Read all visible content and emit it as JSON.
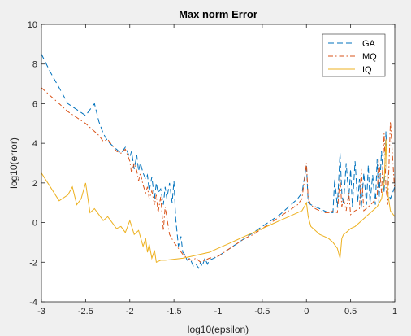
{
  "chart_data": {
    "type": "line",
    "title": "Max norm Error",
    "xlabel": "log10(epsilon)",
    "ylabel": "log10(error)",
    "xlim": [
      -3,
      1
    ],
    "ylim": [
      -4,
      10
    ],
    "xticks": [
      -3,
      -2.5,
      -2,
      -1.5,
      -1,
      -0.5,
      0,
      0.5,
      1
    ],
    "xtick_labels": [
      "-3",
      "-2.5",
      "-2",
      "-1.5",
      "-1",
      "-0.5",
      "0",
      "0.5",
      "1"
    ],
    "yticks": [
      -4,
      -2,
      0,
      2,
      4,
      6,
      8,
      10
    ],
    "ytick_labels": [
      "-4",
      "-2",
      "0",
      "2",
      "4",
      "6",
      "8",
      "10"
    ],
    "grid": false,
    "legend_position": "top-right",
    "series": [
      {
        "name": "GA",
        "color": "#0072BD",
        "dash": "dashed",
        "x": [
          -3,
          -2.9,
          -2.8,
          -2.7,
          -2.6,
          -2.5,
          -2.45,
          -2.4,
          -2.35,
          -2.3,
          -2.25,
          -2.2,
          -2.15,
          -2.1,
          -2.05,
          -2.0,
          -1.98,
          -1.95,
          -1.92,
          -1.9,
          -1.88,
          -1.85,
          -1.82,
          -1.8,
          -1.78,
          -1.75,
          -1.72,
          -1.7,
          -1.68,
          -1.65,
          -1.62,
          -1.6,
          -1.58,
          -1.55,
          -1.52,
          -1.5,
          -1.48,
          -1.45,
          -1.42,
          -1.4,
          -1.38,
          -1.35,
          -1.32,
          -1.3,
          -1.28,
          -1.25,
          -1.22,
          -1.2,
          -1.18,
          -1.15,
          -1.12,
          -1.1,
          -1.05,
          -1.0,
          -0.9,
          -0.8,
          -0.7,
          -0.6,
          -0.5,
          -0.4,
          -0.3,
          -0.2,
          -0.1,
          -0.05,
          0.0,
          0.02,
          0.05,
          0.1,
          0.15,
          0.2,
          0.25,
          0.3,
          0.32,
          0.35,
          0.38,
          0.4,
          0.42,
          0.45,
          0.48,
          0.5,
          0.52,
          0.55,
          0.58,
          0.6,
          0.62,
          0.65,
          0.68,
          0.7,
          0.72,
          0.75,
          0.78,
          0.8,
          0.82,
          0.85,
          0.88,
          0.9,
          0.92,
          0.95,
          1.0
        ],
        "y": [
          8.5,
          7.6,
          6.8,
          6.0,
          5.7,
          5.4,
          5.7,
          6.0,
          5.1,
          4.5,
          4.1,
          3.9,
          3.7,
          3.5,
          3.8,
          3.3,
          3.6,
          2.7,
          3.4,
          2.6,
          3.0,
          2.5,
          2.2,
          2.4,
          1.6,
          2.3,
          1.2,
          2.0,
          1.5,
          1.7,
          0.9,
          1.8,
          1.2,
          2.0,
          1.0,
          2.1,
          0.2,
          -1.2,
          -0.7,
          -1.5,
          -1.6,
          -1.9,
          -1.8,
          -2.0,
          -2.2,
          -2.1,
          -2.3,
          -2.0,
          -2.2,
          -1.8,
          -2.1,
          -1.9,
          -1.8,
          -1.7,
          -1.4,
          -1.1,
          -0.8,
          -0.5,
          -0.2,
          0.1,
          0.4,
          0.8,
          1.2,
          1.5,
          2.9,
          1.0,
          0.9,
          0.8,
          0.7,
          0.6,
          0.5,
          0.5,
          2.2,
          0.8,
          3.5,
          1.5,
          0.9,
          3.0,
          1.2,
          2.7,
          0.8,
          3.1,
          1.0,
          2.2,
          0.7,
          2.5,
          0.9,
          2.9,
          1.0,
          2.4,
          0.9,
          3.2,
          1.0,
          3.6,
          1.5,
          4.6,
          1.5,
          1.2,
          1.8
        ]
      },
      {
        "name": "MQ",
        "color": "#D95319",
        "dash": "dashdot",
        "x": [
          -3,
          -2.9,
          -2.8,
          -2.7,
          -2.6,
          -2.5,
          -2.45,
          -2.4,
          -2.35,
          -2.3,
          -2.25,
          -2.2,
          -2.15,
          -2.1,
          -2.05,
          -2.0,
          -1.98,
          -1.95,
          -1.92,
          -1.9,
          -1.88,
          -1.85,
          -1.82,
          -1.8,
          -1.78,
          -1.75,
          -1.72,
          -1.7,
          -1.68,
          -1.65,
          -1.62,
          -1.6,
          -1.55,
          -1.5,
          -1.45,
          -1.4,
          -1.35,
          -1.3,
          -1.25,
          -1.2,
          -1.15,
          -1.1,
          -1.0,
          -0.9,
          -0.8,
          -0.7,
          -0.6,
          -0.5,
          -0.4,
          -0.3,
          -0.2,
          -0.1,
          -0.05,
          0.0,
          0.02,
          0.05,
          0.1,
          0.15,
          0.2,
          0.25,
          0.3,
          0.35,
          0.38,
          0.4,
          0.42,
          0.45,
          0.48,
          0.5,
          0.55,
          0.6,
          0.62,
          0.65,
          0.7,
          0.75,
          0.8,
          0.82,
          0.85,
          0.88,
          0.9,
          0.92,
          0.95,
          1.0
        ],
        "y": [
          6.8,
          6.4,
          6.0,
          5.6,
          5.3,
          5.0,
          4.8,
          4.6,
          4.4,
          4.1,
          4.2,
          3.9,
          3.6,
          3.5,
          3.7,
          3.1,
          2.5,
          3.0,
          2.6,
          2.1,
          2.5,
          1.9,
          1.5,
          1.8,
          1.2,
          1.6,
          0.9,
          1.4,
          0.5,
          1.3,
          -0.4,
          0.8,
          -0.6,
          -1.0,
          -1.3,
          -1.6,
          -1.8,
          -1.9,
          -1.8,
          -2.0,
          -1.9,
          -1.8,
          -1.7,
          -1.4,
          -1.1,
          -0.8,
          -0.6,
          -0.3,
          0.0,
          0.3,
          0.6,
          0.9,
          1.2,
          3.0,
          1.2,
          0.9,
          0.7,
          0.6,
          0.5,
          0.5,
          0.6,
          0.5,
          2.3,
          0.8,
          1.2,
          0.6,
          1.5,
          0.4,
          0.6,
          0.7,
          2.7,
          0.6,
          0.8,
          1.0,
          1.3,
          3.2,
          1.5,
          4.5,
          1.8,
          0.9,
          5.1,
          1.5
        ]
      },
      {
        "name": "IQ",
        "color": "#EDB120",
        "dash": "solid",
        "x": [
          -3,
          -2.9,
          -2.8,
          -2.7,
          -2.65,
          -2.6,
          -2.55,
          -2.5,
          -2.45,
          -2.4,
          -2.35,
          -2.3,
          -2.25,
          -2.2,
          -2.15,
          -2.1,
          -2.05,
          -2.0,
          -1.95,
          -1.9,
          -1.85,
          -1.82,
          -1.8,
          -1.78,
          -1.75,
          -1.72,
          -1.7,
          -1.65,
          -1.6,
          -1.5,
          -1.4,
          -1.3,
          -1.2,
          -1.1,
          -1.0,
          -0.9,
          -0.8,
          -0.7,
          -0.6,
          -0.5,
          -0.4,
          -0.3,
          -0.2,
          -0.1,
          -0.05,
          0.0,
          0.02,
          0.05,
          0.1,
          0.15,
          0.2,
          0.25,
          0.3,
          0.35,
          0.38,
          0.4,
          0.42,
          0.45,
          0.5,
          0.55,
          0.6,
          0.65,
          0.7,
          0.75,
          0.8,
          0.85,
          0.88,
          0.9,
          0.92,
          0.95,
          1.0
        ],
        "y": [
          2.5,
          1.8,
          1.1,
          1.4,
          1.8,
          0.9,
          1.2,
          2.0,
          0.5,
          0.7,
          0.4,
          0.1,
          0.3,
          0.0,
          -0.3,
          -0.2,
          -0.5,
          0.1,
          -0.6,
          -0.4,
          -1.2,
          -0.8,
          -1.5,
          -1.1,
          -1.8,
          -1.4,
          -2.0,
          -1.9,
          -1.9,
          -1.85,
          -1.8,
          -1.7,
          -1.6,
          -1.5,
          -1.3,
          -1.1,
          -0.9,
          -0.7,
          -0.5,
          -0.3,
          -0.1,
          0.1,
          0.3,
          0.5,
          0.6,
          1.0,
          0.3,
          -0.2,
          -0.4,
          -0.6,
          -0.7,
          -0.8,
          -1.0,
          -1.3,
          -1.8,
          -0.8,
          -0.6,
          -0.5,
          -0.3,
          -0.2,
          0.0,
          0.2,
          0.4,
          0.6,
          0.8,
          1.2,
          2.0,
          4.2,
          1.5,
          0.6,
          0.3
        ]
      }
    ]
  }
}
